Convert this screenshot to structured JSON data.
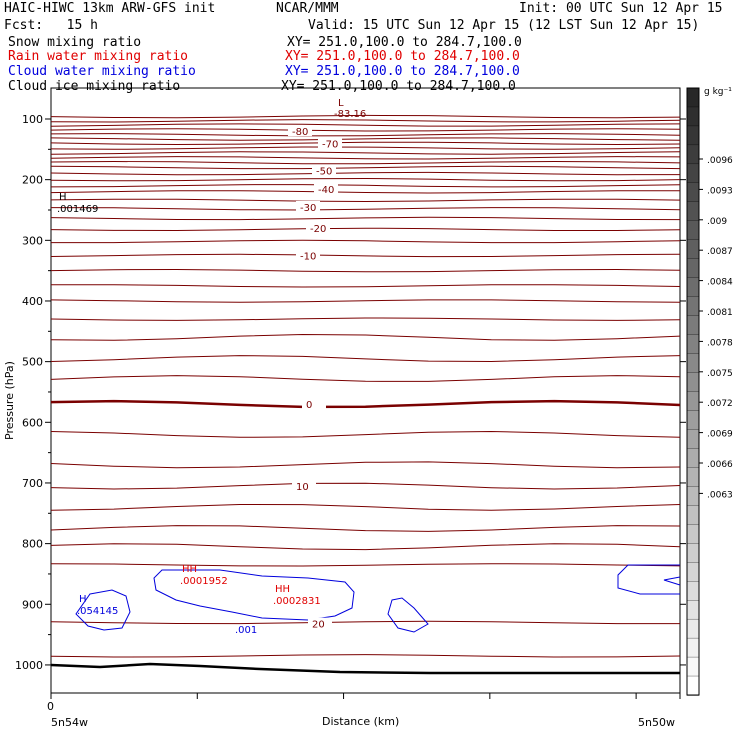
{
  "header": {
    "model": "HAIC-HIWC 13km ARW-GFS init",
    "org": "NCAR/MMM",
    "init": "Init: 00 UTC Sun 12 Apr 15",
    "fcst": "Fcst:   15 h",
    "valid": "Valid: 15 UTC Sun 12 Apr 15 (12 LST Sun 12 Apr 15)"
  },
  "fields": [
    {
      "name": "Snow mixing ratio",
      "xy": "XY= 251.0,100.0 to 284.7,100.0",
      "color": "#000000"
    },
    {
      "name": "Rain water mixing ratio",
      "xy": "XY= 251.0,100.0 to 284.7,100.0",
      "color": "#e00000"
    },
    {
      "name": "Cloud water mixing ratio",
      "xy": "XY= 251.0,100.0 to 284.7,100.0",
      "color": "#0000dd"
    },
    {
      "name": "Cloud ice mixing ratio",
      "xy": "XY= 251.0,100.0 to 284.7,100.0",
      "color": "#000000"
    }
  ],
  "chart_data": {
    "type": "contour",
    "ylabel": "Pressure (hPa)",
    "xlabel": "Distance (km)",
    "y_ticks": [
      100,
      200,
      300,
      400,
      500,
      600,
      700,
      800,
      900,
      1000
    ],
    "ylim": [
      1050,
      50
    ],
    "x_tick_start_label": "0",
    "x_left_label": "5n54w",
    "x_right_label": "5n50w",
    "colorbar": {
      "unit": "g kg⁻¹",
      "labels": [
        ".0096",
        ".0093",
        ".009",
        ".0087",
        ".0084",
        ".0081",
        ".0078",
        ".0075",
        ".0072",
        ".0069",
        ".0066",
        ".0063"
      ]
    },
    "temperature_contours": {
      "unit": "°C",
      "color": "#7a0000",
      "labeled_levels": [
        {
          "label": "-80",
          "p": 120
        },
        {
          "label": "-70",
          "p": 140
        },
        {
          "label": "-50",
          "p": 185
        },
        {
          "label": "-40",
          "p": 215
        },
        {
          "label": "-30",
          "p": 245
        },
        {
          "label": "-20",
          "p": 280
        },
        {
          "label": "-10",
          "p": 325
        },
        {
          "label": "0",
          "p": 570
        },
        {
          "label": "10",
          "p": 705
        },
        {
          "label": "20",
          "p": 932
        }
      ],
      "min_label": "L",
      "min_value": "-83.16"
    },
    "extrema_labels": [
      {
        "mark": "H",
        "value": ".001469",
        "color": "#000000"
      },
      {
        "mark": "H",
        "value": ".054145",
        "color": "#0000dd"
      },
      {
        "mark": "HH",
        "value": ".0001952",
        "color": "#e00000"
      },
      {
        "mark": "HH",
        "value": ".0002831",
        "color": "#e00000"
      },
      {
        "value": ".001",
        "color": "#0000dd"
      }
    ]
  }
}
